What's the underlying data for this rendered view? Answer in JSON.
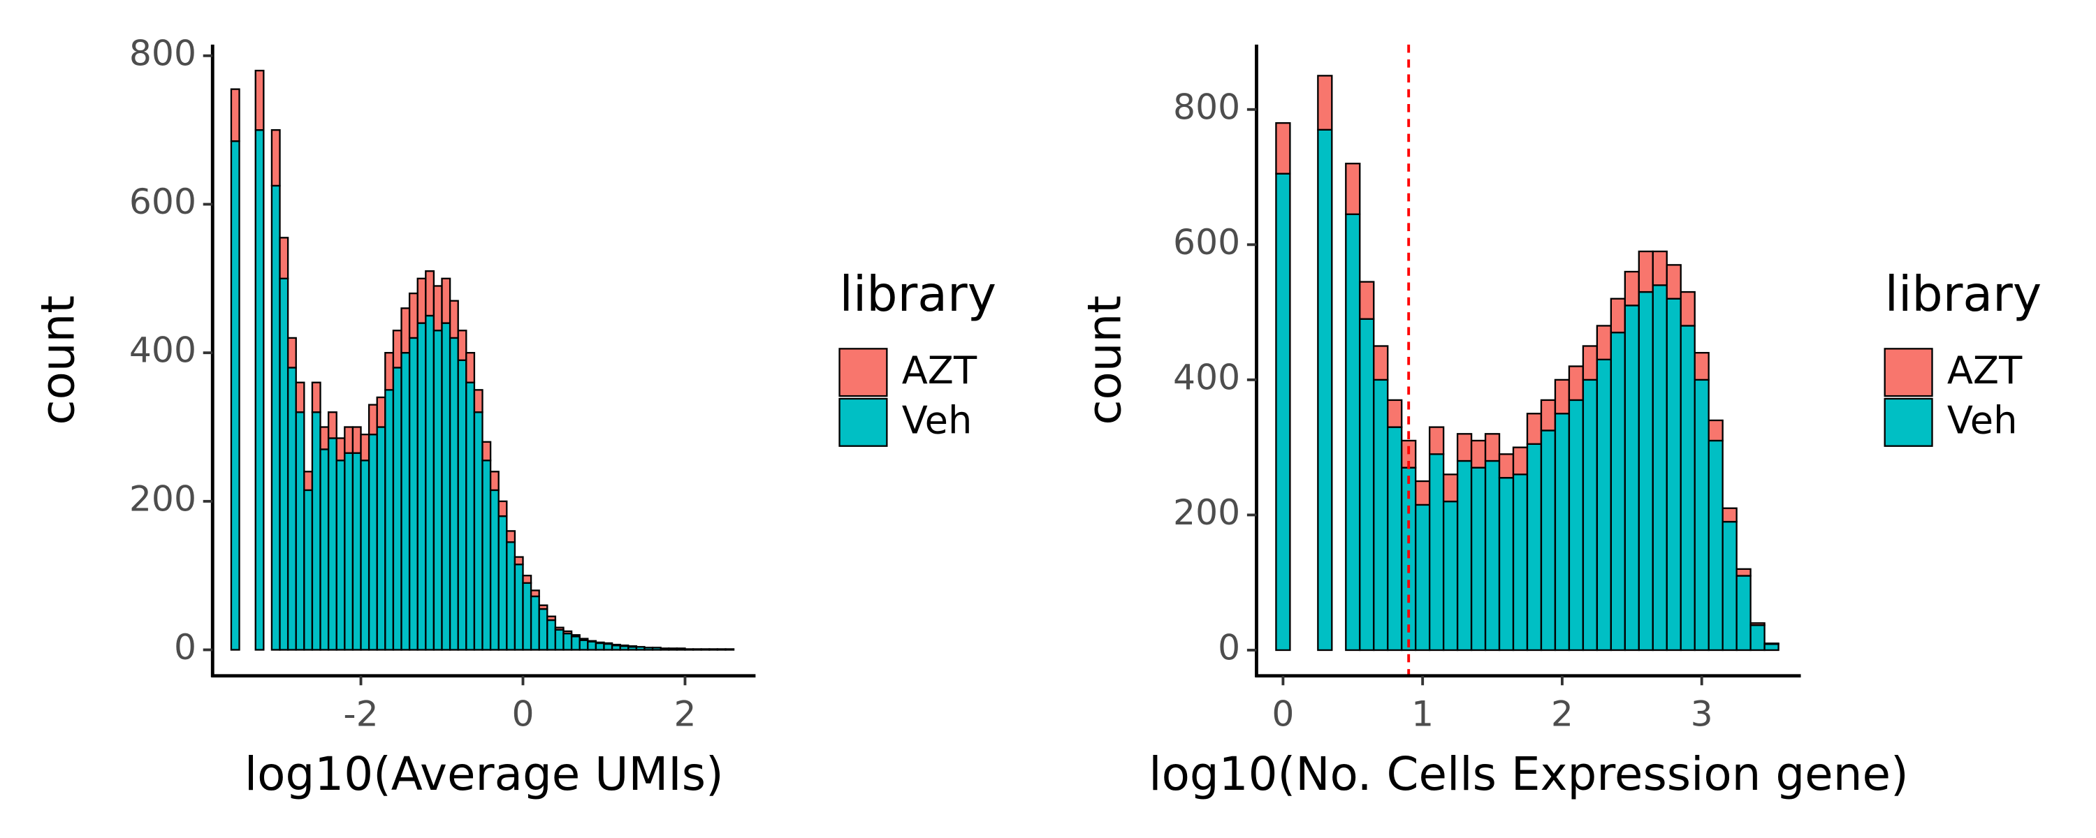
{
  "chart_data": [
    {
      "type": "histogram",
      "x_label": "log10(Average UMIs)",
      "y_label": "count",
      "legend_title": "library",
      "bins": [
        -3.6,
        -3.5,
        -3.4,
        -3.3,
        -3.2,
        -3.1,
        -3.0,
        -2.9,
        -2.8,
        -2.7,
        -2.6,
        -2.5,
        -2.4,
        -2.3,
        -2.2,
        -2.1,
        -2.0,
        -1.9,
        -1.8,
        -1.7,
        -1.6,
        -1.5,
        -1.4,
        -1.3,
        -1.2,
        -1.1,
        -1.0,
        -0.9,
        -0.8,
        -0.7,
        -0.6,
        -0.5,
        -0.4,
        -0.3,
        -0.2,
        -0.1,
        0.0,
        0.1,
        0.2,
        0.3,
        0.4,
        0.5,
        0.6,
        0.7,
        0.8,
        0.9,
        1.0,
        1.1,
        1.2,
        1.3,
        1.4,
        1.5,
        1.6,
        1.7,
        1.8,
        1.9,
        2.0,
        2.1,
        2.2,
        2.3,
        2.4,
        2.5,
        2.6
      ],
      "series": [
        {
          "name": "AZT",
          "color": "#F8766D",
          "values": [
            70,
            0,
            0,
            80,
            0,
            75,
            55,
            40,
            40,
            25,
            40,
            30,
            35,
            30,
            35,
            35,
            35,
            40,
            40,
            50,
            50,
            60,
            60,
            60,
            60,
            60,
            60,
            50,
            40,
            40,
            30,
            25,
            25,
            20,
            15,
            10,
            10,
            8,
            5,
            5,
            3,
            3,
            2,
            2,
            1,
            1,
            1,
            1,
            1,
            1,
            0,
            0,
            0,
            0,
            0,
            0,
            0,
            0,
            0,
            0,
            0,
            0
          ]
        },
        {
          "name": "Veh",
          "color": "#00BFC4",
          "values": [
            685,
            0,
            0,
            700,
            0,
            625,
            500,
            380,
            320,
            215,
            320,
            270,
            285,
            255,
            265,
            265,
            255,
            290,
            300,
            350,
            380,
            400,
            420,
            440,
            450,
            430,
            440,
            420,
            390,
            360,
            320,
            255,
            215,
            180,
            145,
            115,
            90,
            72,
            55,
            40,
            27,
            22,
            18,
            13,
            11,
            9,
            8,
            6,
            5,
            4,
            4,
            3,
            3,
            2,
            2,
            2,
            1,
            1,
            1,
            1,
            1,
            1
          ]
        }
      ],
      "xlim": [
        -3.83,
        2.87
      ],
      "xticks": [
        -2,
        0,
        2
      ],
      "ylim": [
        -35,
        815
      ],
      "yticks": [
        0,
        200,
        400,
        600,
        800
      ]
    },
    {
      "type": "histogram",
      "x_label": "log10(No. Cells Expression gene)",
      "y_label": "count",
      "legend_title": "library",
      "bins": [
        -0.05,
        0.05,
        0.15,
        0.25,
        0.35,
        0.45,
        0.55,
        0.65,
        0.75,
        0.85,
        0.95,
        1.05,
        1.15,
        1.25,
        1.35,
        1.45,
        1.55,
        1.65,
        1.75,
        1.85,
        1.95,
        2.05,
        2.15,
        2.25,
        2.35,
        2.45,
        2.55,
        2.65,
        2.75,
        2.85,
        2.95,
        3.05,
        3.15,
        3.25,
        3.35,
        3.45,
        3.55
      ],
      "series": [
        {
          "name": "AZT",
          "color": "#F8766D",
          "values": [
            75,
            0,
            0,
            80,
            0,
            75,
            55,
            50,
            40,
            40,
            35,
            40,
            40,
            40,
            40,
            40,
            35,
            40,
            45,
            45,
            50,
            50,
            50,
            50,
            50,
            50,
            60,
            50,
            50,
            50,
            40,
            30,
            20,
            10,
            3,
            1
          ]
        },
        {
          "name": "Veh",
          "color": "#00BFC4",
          "values": [
            705,
            0,
            0,
            770,
            0,
            645,
            490,
            400,
            330,
            270,
            215,
            290,
            220,
            280,
            270,
            280,
            255,
            260,
            305,
            325,
            350,
            370,
            400,
            430,
            470,
            510,
            530,
            540,
            520,
            480,
            400,
            310,
            190,
            110,
            37,
            9
          ]
        }
      ],
      "vline": 0.9,
      "vline_color": "#FF0000",
      "xlim": [
        -0.19,
        3.71
      ],
      "xticks": [
        0,
        1,
        2,
        3
      ],
      "ylim": [
        -38,
        896
      ],
      "yticks": [
        0,
        200,
        400,
        600,
        800
      ]
    }
  ]
}
